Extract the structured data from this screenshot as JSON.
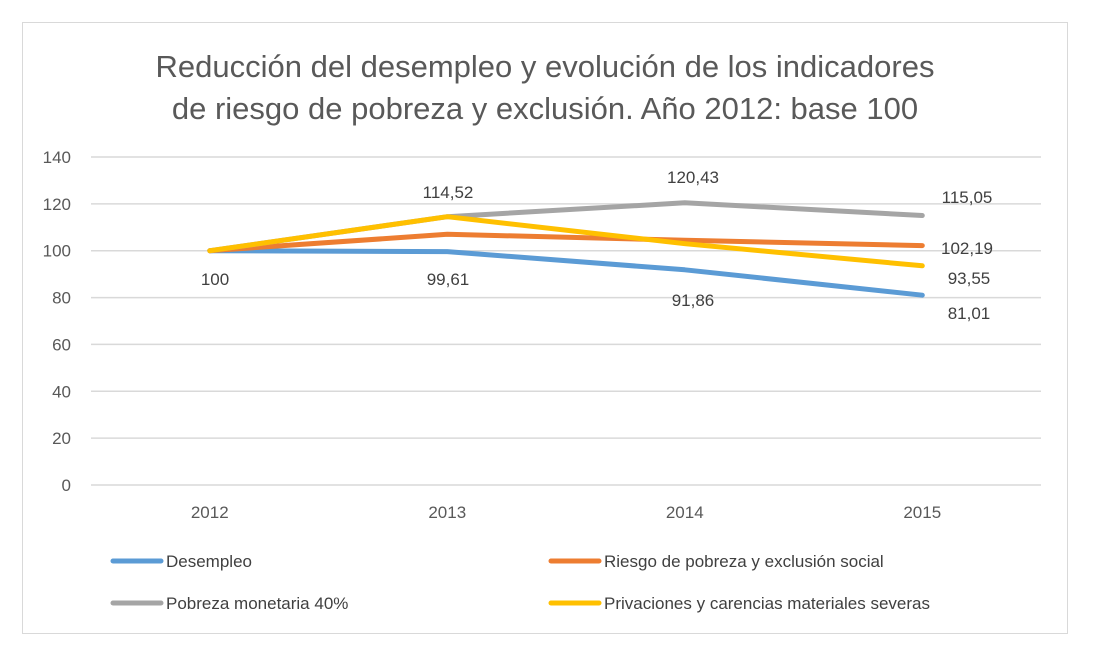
{
  "chart_data": {
    "type": "line",
    "title": "Reducción del desempleo y evolución de los indicadores de riesgo de pobreza y exclusión. Año 2012: base 100",
    "title_lines": [
      "Reducción del desempleo y evolución de los indicadores",
      "de riesgo de pobreza y exclusión. Año 2012: base 100"
    ],
    "categories": [
      "2012",
      "2013",
      "2014",
      "2015"
    ],
    "ylim": [
      0,
      140
    ],
    "yticks": [
      0,
      20,
      40,
      60,
      80,
      100,
      120,
      140
    ],
    "grid": true,
    "legend_position": "bottom",
    "xlabel": "",
    "ylabel": "",
    "series": [
      {
        "name": "Desempleo",
        "color": "#5b9bd5",
        "values": [
          100,
          99.61,
          91.86,
          81.01
        ]
      },
      {
        "name": "Riesgo de pobreza y exclusión social",
        "color": "#ed7d31",
        "values": [
          100,
          107,
          104.5,
          102.19
        ]
      },
      {
        "name": "Pobreza monetaria 40%",
        "color": "#a5a5a5",
        "values": [
          100,
          114.52,
          120.43,
          115.05
        ]
      },
      {
        "name": "Privaciones y carencias materiales severas",
        "color": "#ffc000",
        "values": [
          100,
          114.52,
          103,
          93.55
        ]
      }
    ],
    "data_labels": [
      {
        "text": "100",
        "series": "Desempleo",
        "category": "2012"
      },
      {
        "text": "99,61",
        "series": "Desempleo",
        "category": "2013"
      },
      {
        "text": "91,86",
        "series": "Desempleo",
        "category": "2014"
      },
      {
        "text": "81,01",
        "series": "Desempleo",
        "category": "2015"
      },
      {
        "text": "114,52",
        "series": "Pobreza monetaria 40%",
        "category": "2013"
      },
      {
        "text": "120,43",
        "series": "Pobreza monetaria 40%",
        "category": "2014"
      },
      {
        "text": "115,05",
        "series": "Pobreza monetaria 40%",
        "category": "2015"
      },
      {
        "text": "102,19",
        "series": "Riesgo de pobreza y exclusión social",
        "category": "2015"
      },
      {
        "text": "93,55",
        "series": "Privaciones y carencias materiales severas",
        "category": "2015"
      }
    ]
  }
}
